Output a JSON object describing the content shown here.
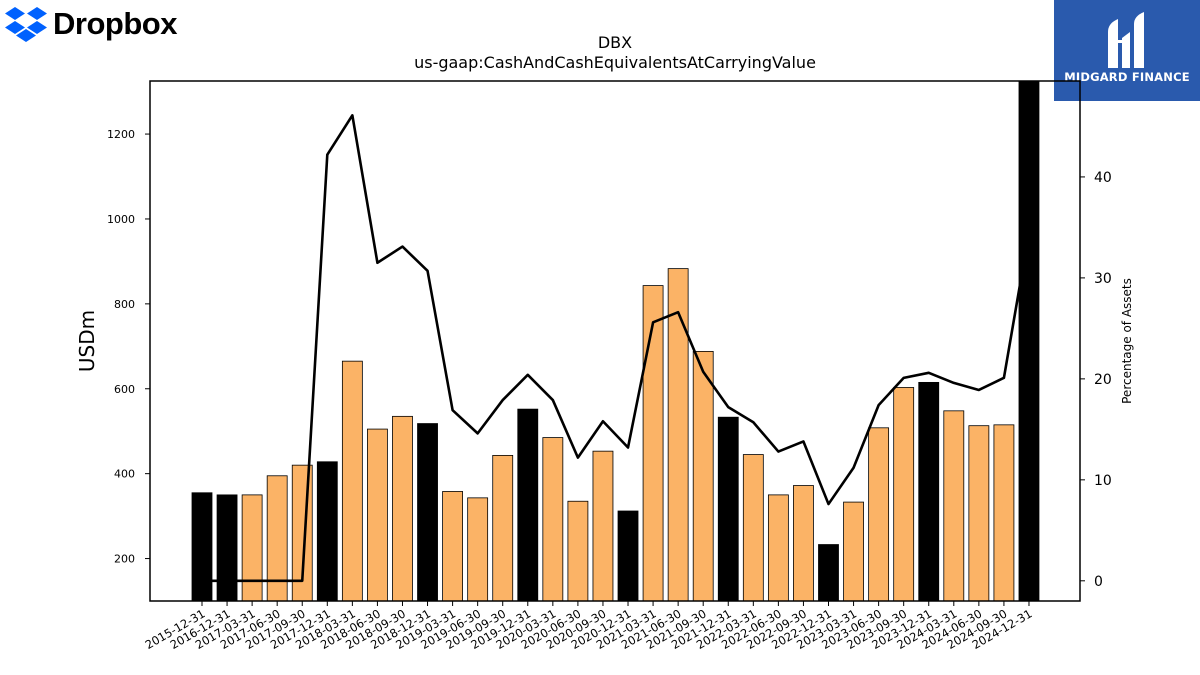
{
  "logos": {
    "left": {
      "text": "Dropbox",
      "icon": "dropbox-diamond-icon",
      "color": "#0061fe"
    },
    "right": {
      "text": "MIDGARD FINANCE",
      "icon": "midgard-monogram-icon",
      "background": "#2a5aad"
    }
  },
  "chart_data": {
    "type": "bar",
    "title": "DBX",
    "subtitle": "us-gaap:CashAndCashEquivalentsAtCarryingValue",
    "ylabel": "USDm",
    "y2label": "Percentage of Assets",
    "ylim": [
      100,
      1325
    ],
    "y2lim": [
      -2,
      49.5
    ],
    "yticks": [
      200,
      400,
      600,
      800,
      1000,
      1200
    ],
    "y2ticks": [
      0,
      10,
      20,
      30,
      40
    ],
    "grid": false,
    "colors": {
      "annual": "#000000",
      "quarterly": "#fbb366",
      "line": "#000000"
    },
    "categories": [
      "2015-12-31",
      "2016-12-31",
      "2017-03-31",
      "2017-06-30",
      "2017-09-30",
      "2017-12-31",
      "2018-03-31",
      "2018-06-30",
      "2018-09-30",
      "2018-12-31",
      "2019-03-31",
      "2019-06-30",
      "2019-09-30",
      "2019-12-31",
      "2020-03-31",
      "2020-06-30",
      "2020-09-30",
      "2020-12-31",
      "2021-03-31",
      "2021-06-30",
      "2021-09-30",
      "2021-12-31",
      "2022-03-31",
      "2022-06-30",
      "2022-09-30",
      "2022-12-31",
      "2023-03-31",
      "2023-06-30",
      "2023-09-30",
      "2023-12-31",
      "2024-03-31",
      "2024-06-30",
      "2024-09-30",
      "2024-12-31"
    ],
    "series": [
      {
        "kind": "bar",
        "values": [
          355,
          350,
          350,
          395,
          420,
          428,
          665,
          505,
          535,
          518,
          358,
          343,
          443,
          552,
          485,
          335,
          453,
          312,
          843,
          883,
          688,
          533,
          445,
          350,
          372,
          233,
          333,
          508,
          603,
          615,
          548,
          513,
          515,
          1325
        ],
        "is_annual": [
          true,
          true,
          false,
          false,
          false,
          true,
          false,
          false,
          false,
          true,
          false,
          false,
          false,
          true,
          false,
          false,
          false,
          true,
          false,
          false,
          false,
          true,
          false,
          false,
          false,
          true,
          false,
          false,
          false,
          true,
          false,
          false,
          false,
          true
        ]
      },
      {
        "kind": "line",
        "axis": "right",
        "values": [
          0,
          0,
          0,
          0,
          0,
          42.2,
          46.1,
          31.5,
          33.1,
          30.7,
          16.9,
          14.6,
          17.9,
          20.4,
          17.9,
          12.2,
          15.8,
          13.2,
          25.6,
          26.6,
          20.7,
          17.2,
          15.7,
          12.8,
          13.8,
          7.6,
          11.2,
          17.4,
          20.1,
          20.6,
          19.6,
          18.9,
          20.1,
          34.5
        ]
      }
    ]
  }
}
